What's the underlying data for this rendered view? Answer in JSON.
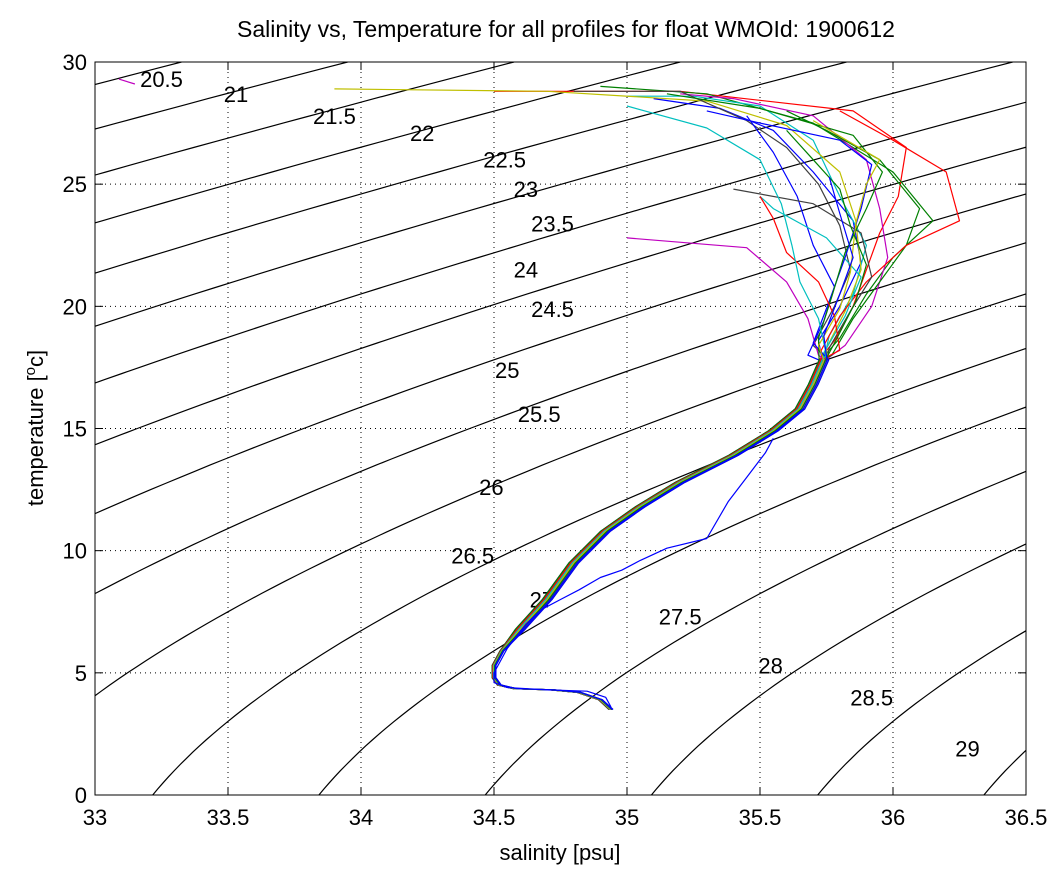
{
  "chart_data": {
    "type": "line",
    "title": "Salinity vs, Temperature for all profiles for float WMOId: 1900612",
    "xlabel": "salinity [psu]",
    "ylabel_main": "temperature [",
    "ylabel_sup": "o",
    "ylabel_end": "c]",
    "xlim": [
      33,
      36.5
    ],
    "ylim": [
      0,
      30
    ],
    "xticks": [
      33,
      33.5,
      34,
      34.5,
      35,
      35.5,
      36,
      36.5
    ],
    "xtick_labels": [
      "33",
      "33.5",
      "34",
      "34.5",
      "35",
      "35.5",
      "36",
      "36.5"
    ],
    "yticks": [
      0,
      5,
      10,
      15,
      20,
      25,
      30
    ],
    "ytick_labels": [
      "0",
      "5",
      "10",
      "15",
      "20",
      "25",
      "30"
    ],
    "grid": true,
    "isopycnals": [
      {
        "label": "20.5",
        "label_at": [
          33.25,
          29.3
        ]
      },
      {
        "label": "21",
        "label_at": [
          33.53,
          28.7
        ]
      },
      {
        "label": "21.5",
        "label_at": [
          33.9,
          27.8
        ]
      },
      {
        "label": "22",
        "label_at": [
          34.23,
          27.1
        ]
      },
      {
        "label": "22.5",
        "label_at": [
          34.54,
          26.0
        ]
      },
      {
        "label": "23",
        "label_at": [
          34.62,
          24.8
        ]
      },
      {
        "label": "23.5",
        "label_at": [
          34.72,
          23.4
        ]
      },
      {
        "label": "24",
        "label_at": [
          34.62,
          21.5
        ]
      },
      {
        "label": "24.5",
        "label_at": [
          34.72,
          19.9
        ]
      },
      {
        "label": "25",
        "label_at": [
          34.55,
          17.4
        ]
      },
      {
        "label": "25.5",
        "label_at": [
          34.67,
          15.6
        ]
      },
      {
        "label": "26",
        "label_at": [
          34.49,
          12.6
        ]
      },
      {
        "label": "26.5",
        "label_at": [
          34.42,
          9.8
        ]
      },
      {
        "label": "27",
        "label_at": [
          34.68,
          8.0
        ]
      },
      {
        "label": "27.5",
        "label_at": [
          35.2,
          7.3
        ]
      },
      {
        "label": "28",
        "label_at": [
          35.54,
          5.3
        ]
      },
      {
        "label": "28.5",
        "label_at": [
          35.92,
          4.0
        ]
      },
      {
        "label": "29",
        "label_at": [
          36.28,
          1.9
        ]
      }
    ],
    "profile_colors": [
      "#0000ff",
      "#008000",
      "#ff0000",
      "#00bfbf",
      "#bf00bf",
      "#bfbf00",
      "#404040"
    ],
    "shared_deep_segment": [
      [
        34.94,
        3.5
      ],
      [
        34.9,
        3.9
      ],
      [
        34.82,
        4.2
      ],
      [
        34.72,
        4.3
      ],
      [
        34.58,
        4.35
      ],
      [
        34.52,
        4.5
      ],
      [
        34.5,
        4.8
      ],
      [
        34.5,
        5.3
      ],
      [
        34.53,
        5.9
      ],
      [
        34.6,
        6.8
      ],
      [
        34.7,
        8.0
      ],
      [
        34.8,
        9.5
      ],
      [
        34.92,
        10.8
      ],
      [
        35.05,
        11.8
      ],
      [
        35.2,
        12.8
      ],
      [
        35.4,
        13.9
      ],
      [
        35.55,
        14.9
      ],
      [
        35.65,
        15.8
      ],
      [
        35.7,
        16.8
      ],
      [
        35.74,
        17.8
      ]
    ],
    "profiles": [
      {
        "color": "#ff0000",
        "upper": [
          [
            35.78,
            18.6
          ],
          [
            35.85,
            20.0
          ],
          [
            35.9,
            21.5
          ],
          [
            35.95,
            23.0
          ],
          [
            36.02,
            24.5
          ],
          [
            36.05,
            26.5
          ],
          [
            35.85,
            28.0
          ],
          [
            35.2,
            28.8
          ],
          [
            34.5,
            28.8
          ]
        ]
      },
      {
        "color": "#008000",
        "upper": [
          [
            35.8,
            18.7
          ],
          [
            35.9,
            20.5
          ],
          [
            36.0,
            22.0
          ],
          [
            36.15,
            23.5
          ],
          [
            36.0,
            25.5
          ],
          [
            35.7,
            27.5
          ],
          [
            35.3,
            28.7
          ],
          [
            34.9,
            29.0
          ]
        ]
      },
      {
        "color": "#0000ff",
        "upper": [
          [
            35.72,
            18.6
          ],
          [
            35.8,
            20.0
          ],
          [
            35.88,
            21.8
          ],
          [
            35.85,
            23.5
          ],
          [
            35.7,
            25.5
          ],
          [
            35.55,
            27.2
          ],
          [
            35.35,
            28.1
          ],
          [
            35.1,
            28.5
          ]
        ]
      },
      {
        "color": "#00bfbf",
        "upper": [
          [
            35.76,
            18.8
          ],
          [
            35.85,
            20.5
          ],
          [
            35.9,
            22.5
          ],
          [
            35.8,
            24.5
          ],
          [
            35.7,
            26.8
          ],
          [
            35.5,
            28.2
          ],
          [
            35.25,
            28.6
          ],
          [
            35.0,
            28.6
          ]
        ]
      },
      {
        "color": "#bf00bf",
        "upper": [
          [
            35.82,
            18.4
          ],
          [
            35.92,
            20.0
          ],
          [
            35.98,
            22.0
          ],
          [
            35.95,
            24.0
          ],
          [
            35.9,
            26.0
          ],
          [
            35.7,
            27.8
          ],
          [
            35.4,
            28.5
          ],
          [
            35.2,
            28.7
          ]
        ]
      },
      {
        "color": "#bfbf00",
        "upper": [
          [
            35.75,
            18.3
          ],
          [
            35.82,
            19.8
          ],
          [
            35.88,
            21.5
          ],
          [
            35.86,
            23.5
          ],
          [
            35.8,
            25.5
          ],
          [
            35.6,
            27.4
          ],
          [
            35.3,
            28.4
          ],
          [
            34.7,
            28.8
          ],
          [
            33.9,
            28.9
          ]
        ]
      },
      {
        "color": "#404040",
        "upper": [
          [
            35.7,
            18.4
          ],
          [
            35.78,
            20.0
          ],
          [
            35.84,
            21.5
          ],
          [
            35.8,
            23.3
          ],
          [
            35.72,
            25.0
          ],
          [
            35.6,
            26.5
          ],
          [
            35.45,
            27.6
          ],
          [
            35.2,
            28.8
          ],
          [
            34.8,
            28.8
          ]
        ]
      },
      {
        "color": "#0000ff",
        "upper": [
          [
            35.68,
            18.0
          ],
          [
            35.74,
            19.4
          ],
          [
            35.78,
            20.8
          ],
          [
            35.7,
            22.5
          ],
          [
            35.64,
            24.5
          ],
          [
            35.55,
            26.3
          ],
          [
            35.45,
            27.8
          ]
        ]
      },
      {
        "color": "#008000",
        "upper": [
          [
            35.77,
            18.0
          ],
          [
            35.85,
            19.5
          ],
          [
            35.95,
            21.0
          ],
          [
            36.05,
            22.5
          ],
          [
            36.1,
            24.0
          ],
          [
            35.95,
            26.0
          ],
          [
            35.75,
            27.2
          ],
          [
            35.6,
            28.0
          ]
        ]
      },
      {
        "color": "#ff0000",
        "upper": [
          [
            35.73,
            18.2
          ],
          [
            35.8,
            19.6
          ],
          [
            35.9,
            21.0
          ],
          [
            36.05,
            22.5
          ],
          [
            36.25,
            23.5
          ],
          [
            36.2,
            25.5
          ],
          [
            36.0,
            26.8
          ],
          [
            35.8,
            28.0
          ]
        ]
      },
      {
        "color": "#00bfbf",
        "upper": [
          [
            35.74,
            18.1
          ],
          [
            35.82,
            19.6
          ],
          [
            35.88,
            21.2
          ],
          [
            35.75,
            22.8
          ],
          [
            35.55,
            24.0
          ],
          [
            35.5,
            24.5
          ]
        ]
      },
      {
        "color": "#bf00bf",
        "upper": [
          [
            35.72,
            18.0
          ],
          [
            35.68,
            19.5
          ],
          [
            35.6,
            21.0
          ],
          [
            35.45,
            22.4
          ],
          [
            35.0,
            22.8
          ]
        ]
      },
      {
        "color": "#404040",
        "upper": [
          [
            35.76,
            18.3
          ],
          [
            35.84,
            19.8
          ],
          [
            35.92,
            21.2
          ],
          [
            35.88,
            23.0
          ],
          [
            35.7,
            24.2
          ],
          [
            35.4,
            24.8
          ]
        ]
      },
      {
        "color": "#0000ff",
        "upper": [
          [
            35.7,
            18.5
          ],
          [
            35.76,
            20.2
          ],
          [
            35.82,
            22.0
          ],
          [
            35.88,
            24.0
          ],
          [
            35.92,
            25.8
          ],
          [
            35.8,
            26.8
          ],
          [
            35.5,
            27.5
          ],
          [
            35.3,
            28.0
          ]
        ]
      },
      {
        "color": "#008000",
        "upper": [
          [
            35.72,
            18.7
          ],
          [
            35.77,
            20.4
          ],
          [
            35.82,
            22.2
          ],
          [
            35.9,
            24.0
          ],
          [
            35.96,
            25.5
          ],
          [
            35.85,
            27.0
          ],
          [
            35.5,
            28.1
          ],
          [
            35.15,
            28.7
          ]
        ]
      },
      {
        "color": "#ff0000",
        "upper": [
          [
            35.8,
            18.2
          ],
          [
            35.78,
            19.6
          ],
          [
            35.72,
            21.0
          ],
          [
            35.6,
            22.2
          ],
          [
            35.55,
            23.6
          ],
          [
            35.5,
            24.5
          ]
        ]
      },
      {
        "color": "#00bfbf",
        "upper": [
          [
            35.75,
            18.0
          ],
          [
            35.72,
            19.5
          ],
          [
            35.65,
            21.0
          ],
          [
            35.62,
            22.5
          ],
          [
            35.58,
            24.2
          ],
          [
            35.5,
            26.0
          ],
          [
            35.3,
            27.3
          ],
          [
            35.0,
            28.2
          ]
        ]
      },
      {
        "color": "#bfbf00",
        "upper": [
          [
            35.72,
            18.4
          ],
          [
            35.8,
            19.9
          ],
          [
            35.84,
            21.4
          ],
          [
            35.86,
            23.4
          ],
          [
            35.9,
            25.0
          ],
          [
            35.95,
            26.0
          ],
          [
            35.7,
            27.6
          ]
        ]
      },
      {
        "color": "#008000",
        "upper": [
          [
            35.78,
            18.5
          ],
          [
            35.86,
            20.2
          ],
          [
            35.9,
            21.7
          ],
          [
            35.84,
            23.3
          ],
          [
            35.8,
            24.8
          ],
          [
            35.7,
            26.0
          ],
          [
            35.6,
            27.2
          ]
        ]
      },
      {
        "color": "#0000ff",
        "upper": [
          [
            35.74,
            18.8
          ],
          [
            35.8,
            20.5
          ],
          [
            35.85,
            22.0
          ],
          [
            35.8,
            23.8
          ],
          [
            35.76,
            25.3
          ]
        ]
      }
    ],
    "anomalous_profile": {
      "color": "#0000ff",
      "points": [
        [
          35.55,
          14.6
        ],
        [
          35.52,
          14.0
        ],
        [
          35.45,
          13.0
        ],
        [
          35.38,
          12.0
        ],
        [
          35.3,
          10.5
        ],
        [
          35.15,
          10.1
        ],
        [
          35.05,
          9.6
        ],
        [
          34.98,
          9.2
        ],
        [
          34.9,
          8.9
        ],
        [
          34.82,
          8.4
        ],
        [
          34.75,
          8.0
        ],
        [
          34.68,
          7.6
        ],
        [
          34.62,
          7.0
        ],
        [
          34.55,
          6.0
        ],
        [
          34.52,
          5.4
        ],
        [
          34.5,
          5.0
        ],
        [
          34.5,
          4.6
        ],
        [
          34.55,
          4.4
        ],
        [
          34.7,
          4.3
        ],
        [
          34.85,
          4.25
        ],
        [
          34.92,
          4.0
        ],
        [
          34.94,
          3.6
        ]
      ]
    },
    "isolated_segment": {
      "color": "#bf00bf",
      "points": [
        [
          33.09,
          29.3
        ],
        [
          33.15,
          29.1
        ]
      ]
    }
  }
}
